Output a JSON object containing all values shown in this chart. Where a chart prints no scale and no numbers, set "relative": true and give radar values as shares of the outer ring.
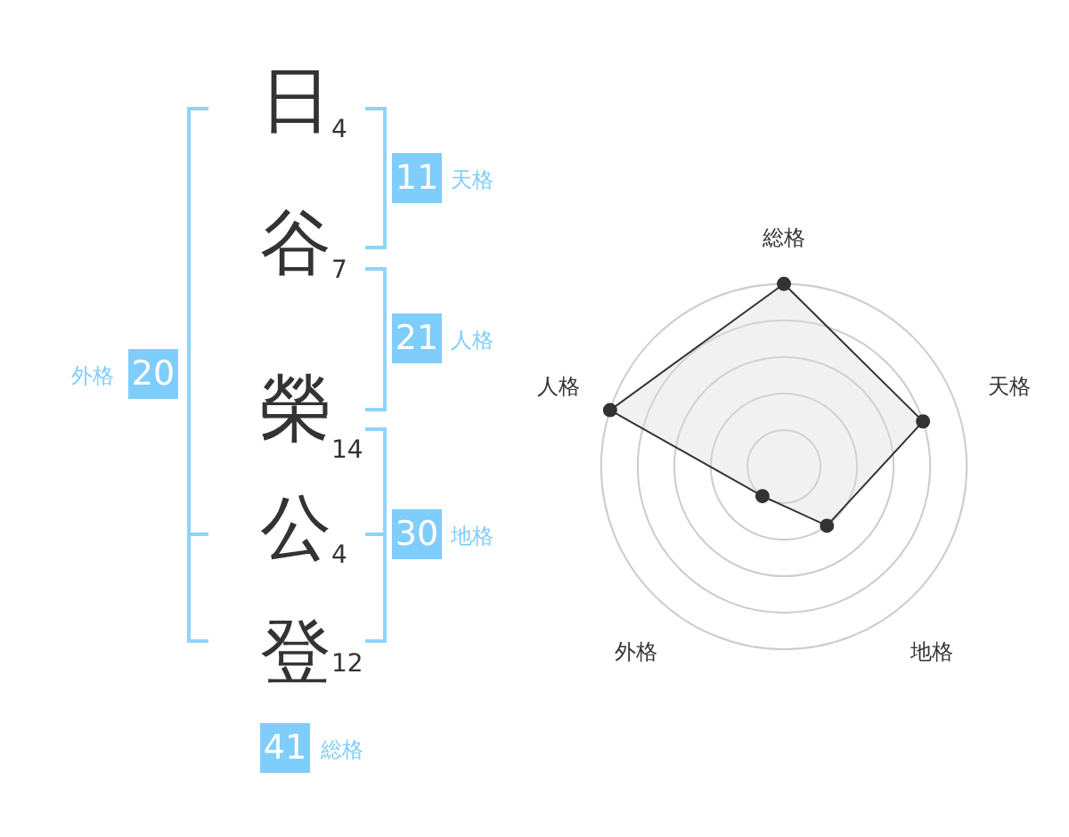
{
  "chart_data": [
    {
      "type": "other",
      "categories": [
        "日",
        "谷",
        "榮",
        "公",
        "登"
      ],
      "values": [
        4,
        7,
        14,
        4,
        12
      ],
      "data_labels": true,
      "annotations": [
        "11",
        "天格",
        "21",
        "人格",
        "30",
        "地格",
        "20",
        "外格",
        "41",
        "総格"
      ]
    },
    {
      "type": "radar",
      "categories": [
        "総格",
        "天格",
        "地格",
        "外格",
        "人格"
      ],
      "relative": true,
      "series": [
        {
          "color": "#333333",
          "values": [
            1.0,
            0.8,
            0.4,
            0.2,
            1.0
          ]
        }
      ]
    }
  ]
}
